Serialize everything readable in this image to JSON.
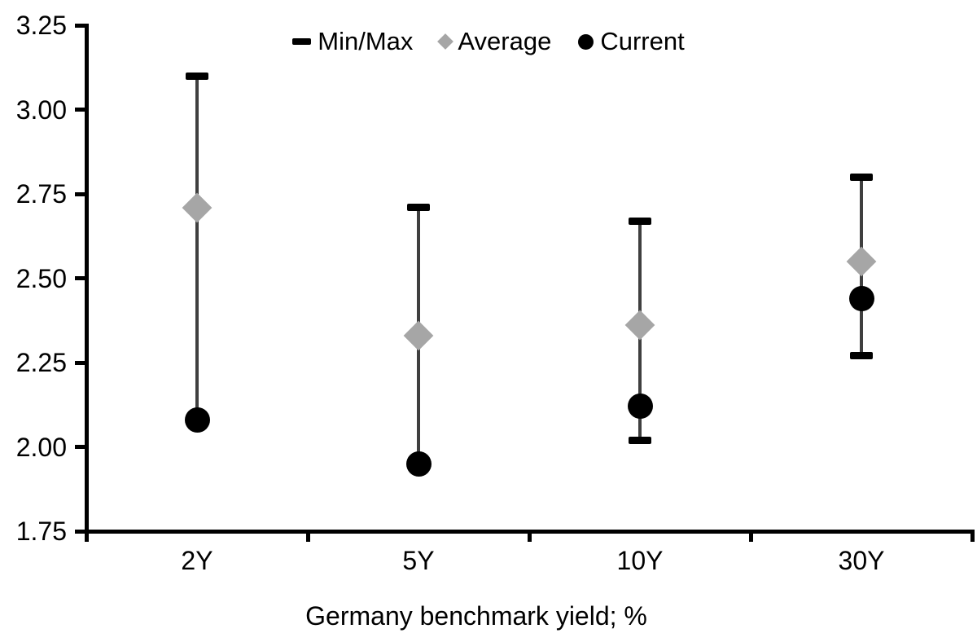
{
  "chart_data": {
    "type": "scatter",
    "subtype": "min-max-range-with-markers",
    "categories": [
      "2Y",
      "5Y",
      "10Y",
      "30Y"
    ],
    "series": [
      {
        "name": "Min/Max",
        "marker": "dash",
        "min": [
          2.08,
          1.95,
          2.02,
          2.27
        ],
        "max": [
          3.1,
          2.71,
          2.67,
          2.8
        ]
      },
      {
        "name": "Average",
        "marker": "diamond",
        "values": [
          2.71,
          2.33,
          2.36,
          2.55
        ]
      },
      {
        "name": "Current",
        "marker": "circle",
        "values": [
          2.08,
          1.95,
          2.12,
          2.44
        ]
      }
    ],
    "title": "",
    "xlabel": "Germany benchmark yield; %",
    "ylabel": "",
    "ylim": [
      1.75,
      3.25
    ],
    "ytick_step": 0.25,
    "ytick_labels": [
      "3.25",
      "3.00",
      "2.75",
      "2.50",
      "2.25",
      "2.00",
      "1.75"
    ],
    "grid": false,
    "legend_position": "top-center"
  },
  "colors": {
    "current": "#000000",
    "average": "#a6a6a6",
    "minmax_cap": "#000000",
    "whisker_line": "#3f3f3f",
    "axis": "#000000",
    "text": "#000000",
    "background": "#ffffff"
  }
}
